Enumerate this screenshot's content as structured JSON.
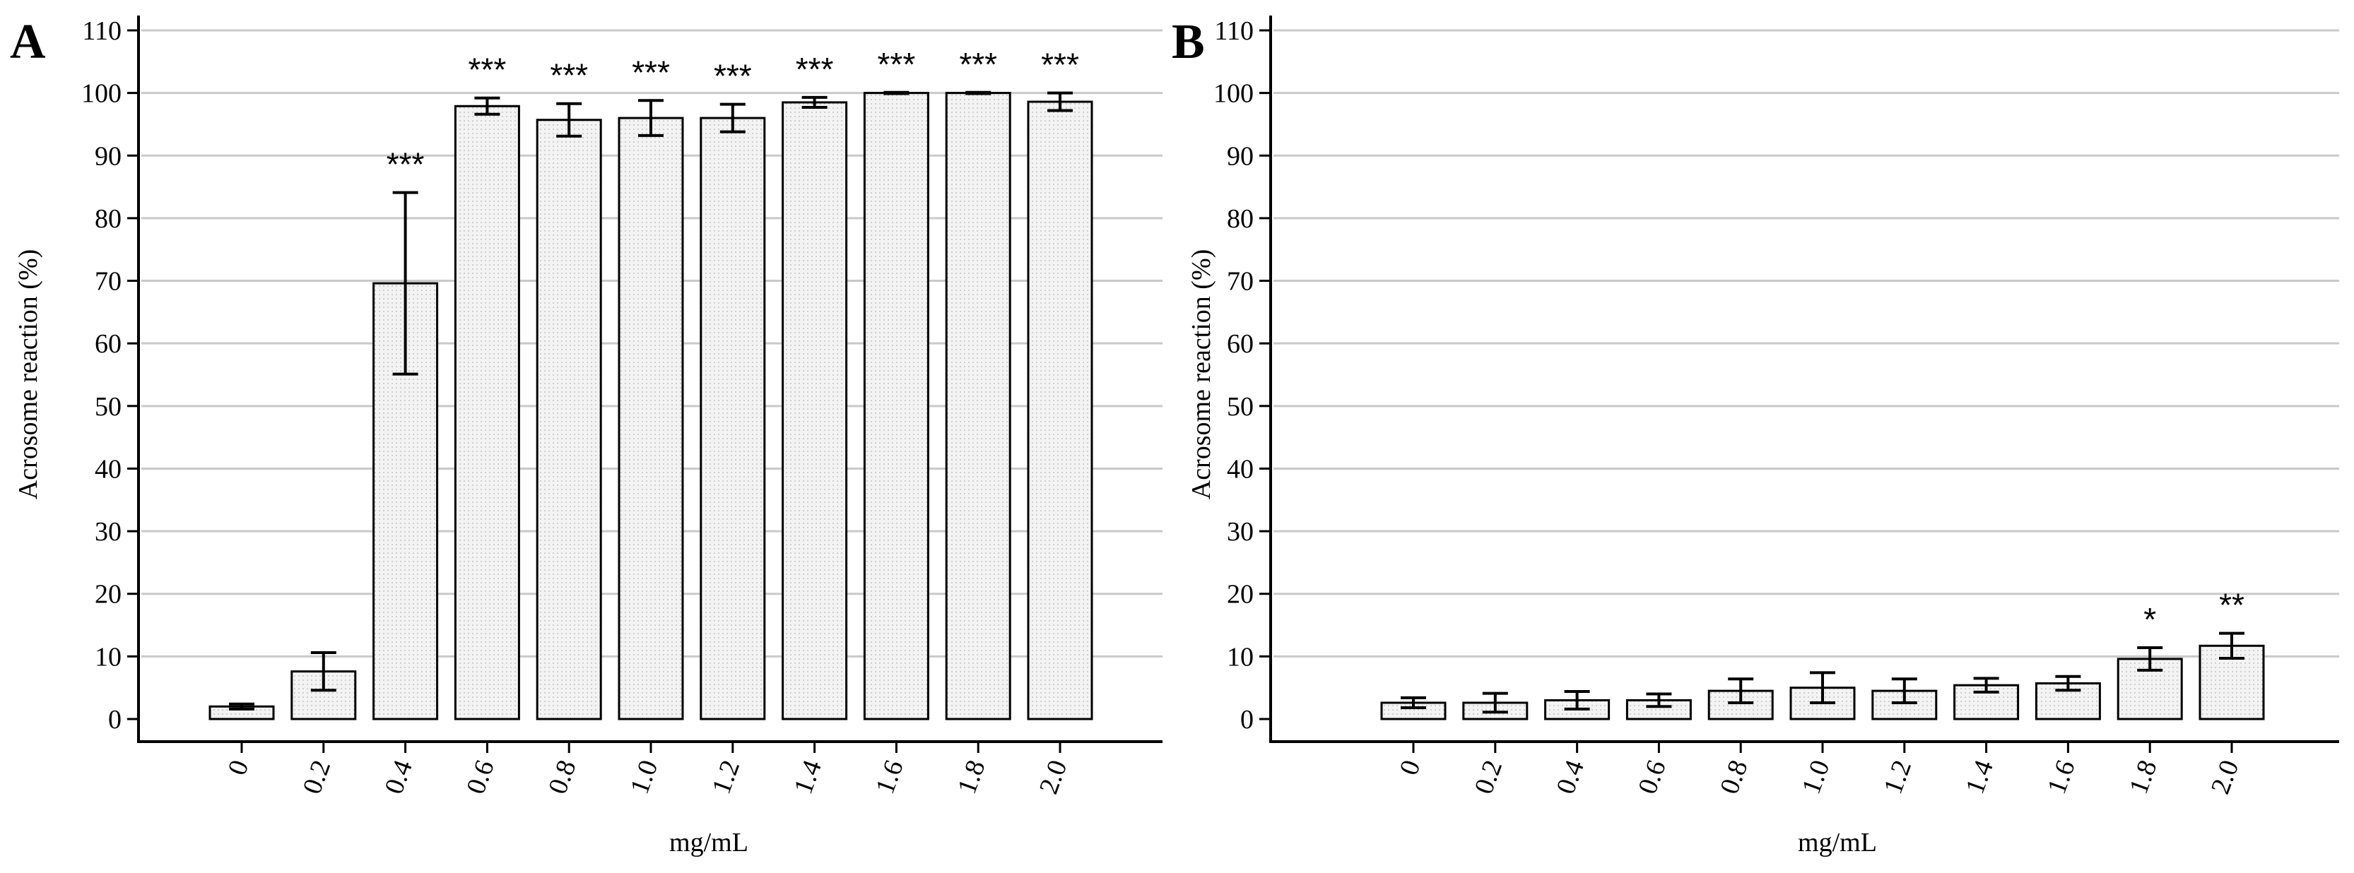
{
  "chart_data": [
    {
      "panel": "A",
      "type": "bar",
      "xlabel": "mg/mL",
      "ylabel": "Acrosome reaction (%)",
      "ylim": [
        0,
        110
      ],
      "yticks": [
        "0",
        "10",
        "20",
        "30",
        "40",
        "50",
        "60",
        "70",
        "80",
        "90",
        "100",
        "110"
      ],
      "grid": true,
      "categories": [
        "0",
        "0.2",
        "0.4",
        "0.6",
        "0.8",
        "1.0",
        "1.2",
        "1.4",
        "1.6",
        "1.8",
        "2.0"
      ],
      "values": [
        2,
        7.6,
        69.6,
        97.9,
        95.7,
        96.0,
        96.0,
        98.5,
        100,
        100,
        98.6
      ],
      "errors": [
        0.4,
        3.0,
        14.5,
        1.3,
        2.6,
        2.8,
        2.2,
        0.8,
        0.1,
        0.1,
        1.4
      ],
      "significance": [
        "",
        "",
        "***",
        "***",
        "***",
        "***",
        "***",
        "***",
        "***",
        "***",
        "***"
      ]
    },
    {
      "panel": "B",
      "type": "bar",
      "xlabel": "mg/mL",
      "ylabel": "Acrosome reaction (%)",
      "ylim": [
        0,
        110
      ],
      "yticks": [
        "0",
        "10",
        "20",
        "30",
        "40",
        "50",
        "60",
        "70",
        "80",
        "90",
        "100",
        "110"
      ],
      "grid": true,
      "categories": [
        "0",
        "0.2",
        "0.4",
        "0.6",
        "0.8",
        "1.0",
        "1.2",
        "1.4",
        "1.6",
        "1.8",
        "2.0"
      ],
      "values": [
        2.6,
        2.6,
        3.0,
        3.0,
        4.5,
        5.0,
        4.5,
        5.4,
        5.7,
        9.6,
        11.7
      ],
      "errors": [
        0.8,
        1.5,
        1.4,
        1.0,
        1.9,
        2.4,
        1.9,
        1.1,
        1.1,
        1.8,
        2.0
      ],
      "significance": [
        "",
        "",
        "",
        "",
        "",
        "",
        "",
        "",
        "",
        "*",
        "**"
      ]
    }
  ]
}
